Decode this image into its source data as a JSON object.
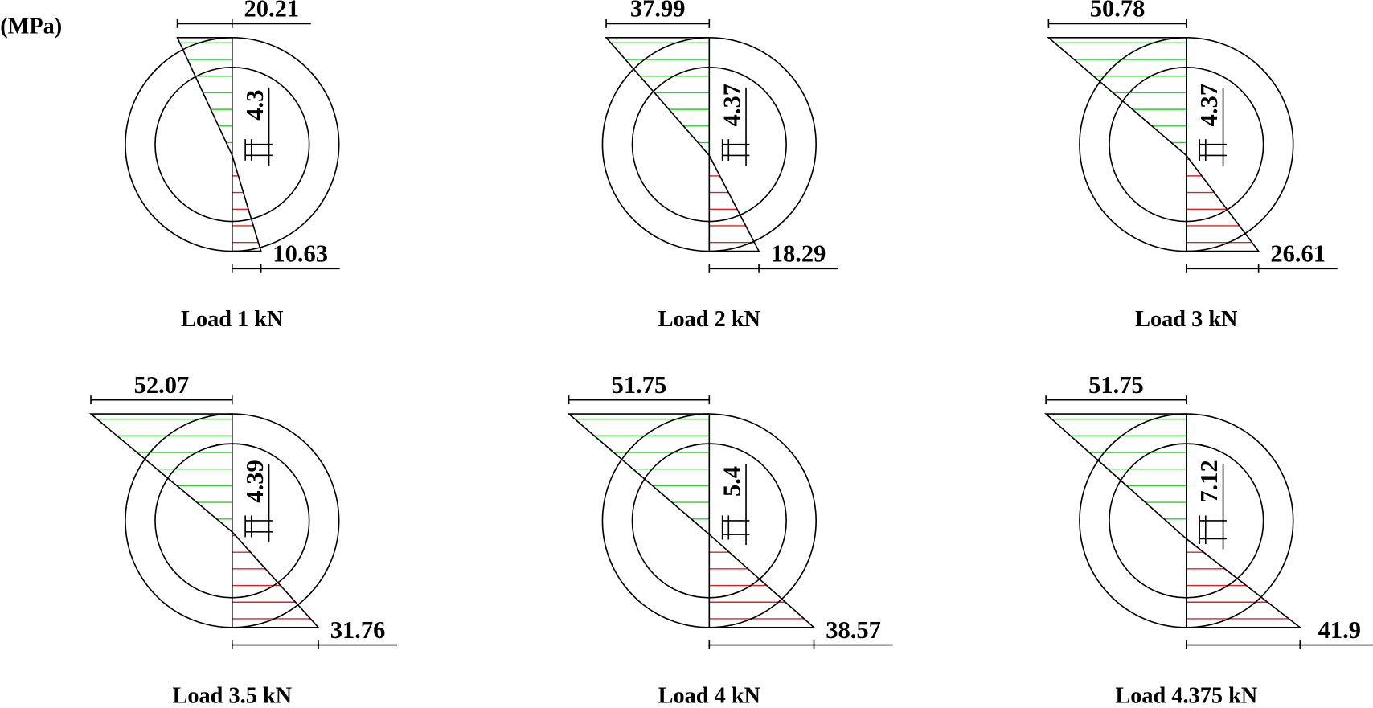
{
  "unit": "(MPa)",
  "panels": [
    {
      "label": "Load 1 kN",
      "top": 20.21,
      "bottom": 10.63,
      "offset": 4.3
    },
    {
      "label": "Load 2 kN",
      "top": 37.99,
      "bottom": 18.29,
      "offset": 4.37
    },
    {
      "label": "Load 3 kN",
      "top": 50.78,
      "bottom": 26.61,
      "offset": 4.37
    },
    {
      "label": "Load 3.5 kN",
      "top": 52.07,
      "bottom": 31.76,
      "offset": 4.39
    },
    {
      "label": "Load 4 kN",
      "top": 51.75,
      "bottom": 38.57,
      "offset": 5.4
    },
    {
      "label": "Load 4.375 kN",
      "top": 51.75,
      "bottom": 41.9,
      "offset": 7.12
    }
  ]
}
